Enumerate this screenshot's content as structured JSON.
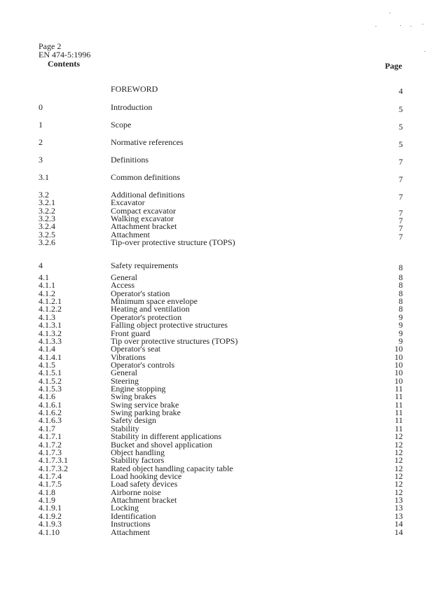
{
  "header": {
    "page": "Page 2",
    "standard": "EN 474-5:1996"
  },
  "contents_label": "Contents",
  "page_label": "Page",
  "groups": [
    [
      {
        "num": "",
        "title": "FOREWORD",
        "page": "4"
      }
    ],
    [
      {
        "num": "0",
        "title": "Introduction",
        "page": "5"
      }
    ],
    [
      {
        "num": "1",
        "title": "Scope",
        "page": "5"
      }
    ],
    [
      {
        "num": "2",
        "title": "Normative references",
        "page": "5"
      }
    ],
    [
      {
        "num": "3",
        "title": "Definitions",
        "page": "7"
      }
    ],
    [
      {
        "num": "3.1",
        "title": "Common definitions",
        "page": "7"
      }
    ],
    [
      {
        "num": "3.2",
        "title": "Additional definitions",
        "page": "7"
      },
      {
        "num": "3.2.1",
        "title": "Excavator",
        "page": ""
      },
      {
        "num": "3.2.2",
        "title": "Compact excavator",
        "page": "7"
      },
      {
        "num": "3.2.3",
        "title": "Walking excavator",
        "page": "7"
      },
      {
        "num": "3.2.4",
        "title": "Attachment bracket",
        "page": "7"
      },
      {
        "num": "3.2.5",
        "title": "Attachment",
        "page": "7"
      },
      {
        "num": "3.2.6",
        "title": "Tip-over protective structure (TOPS)",
        "page": ""
      }
    ],
    [
      {
        "num": "4",
        "title": "Safety requirements",
        "page": "8"
      }
    ],
    [
      {
        "num": "4.1",
        "title": "General",
        "page": "8"
      },
      {
        "num": "4.1.1",
        "title": "Access",
        "page": "8"
      },
      {
        "num": "4.1.2",
        "title": "Operator's station",
        "page": "8"
      },
      {
        "num": "4.1.2.1",
        "title": "Minimum space envelope",
        "page": "8"
      },
      {
        "num": "4.1.2.2",
        "title": "Heating and ventilation",
        "page": "8"
      },
      {
        "num": "4.1.3",
        "title": "Operator's protection",
        "page": "9"
      },
      {
        "num": "4.1.3.1",
        "title": "Falling object protective structures",
        "page": "9"
      },
      {
        "num": "4.1.3.2",
        "title": "Front guard",
        "page": "9"
      },
      {
        "num": "4.1.3.3",
        "title": "Tip over protective structures (TOPS)",
        "page": "9"
      },
      {
        "num": "4.1.4",
        "title": "Operator's seat",
        "page": "10"
      },
      {
        "num": "4.1.4.1",
        "title": "Vibrations",
        "page": "10"
      },
      {
        "num": "4.1.5",
        "title": "Operator's controls",
        "page": "10"
      },
      {
        "num": "4.1.5.1",
        "title": "General",
        "page": "10"
      },
      {
        "num": "4.1.5.2",
        "title": "Steering",
        "page": "10"
      },
      {
        "num": "4.1.5.3",
        "title": "Engine stopping",
        "page": "11"
      },
      {
        "num": "4.1.6",
        "title": "Swing brakes",
        "page": "11"
      },
      {
        "num": "4.1.6.1",
        "title": "Swing service brake",
        "page": "11"
      },
      {
        "num": "4.1.6.2",
        "title": "Swing parking brake",
        "page": "11"
      },
      {
        "num": "4.1.6.3",
        "title": "Safety design",
        "page": "11"
      },
      {
        "num": "4.1.7",
        "title": "Stability",
        "page": "11"
      },
      {
        "num": "4.1.7.1",
        "title": "Stability in different applications",
        "page": "12"
      },
      {
        "num": "4.1.7.2",
        "title": "Bucket and shovel application",
        "page": "12"
      },
      {
        "num": "4.1.7.3",
        "title": "Object handling",
        "page": "12"
      },
      {
        "num": "4.1.7.3.1",
        "title": "Stability factors",
        "page": "12"
      },
      {
        "num": "4.1.7.3.2",
        "title": "Rated object handling capacity table",
        "page": "12"
      },
      {
        "num": "4.1.7.4",
        "title": "Load hooking device",
        "page": "12"
      },
      {
        "num": "4.1.7.5",
        "title": "Load safety devices",
        "page": "12"
      },
      {
        "num": "4.1.8",
        "title": "Airborne noise",
        "page": "12"
      },
      {
        "num": "4.1.9",
        "title": "Attachment bracket",
        "page": "13"
      },
      {
        "num": "4.1.9.1",
        "title": "Locking",
        "page": "13"
      },
      {
        "num": "4.1.9.2",
        "title": "Identification",
        "page": "13"
      },
      {
        "num": "4.1.9.3",
        "title": "Instructions",
        "page": "14"
      },
      {
        "num": "4.1.10",
        "title": "Attachment",
        "page": "14"
      }
    ]
  ]
}
